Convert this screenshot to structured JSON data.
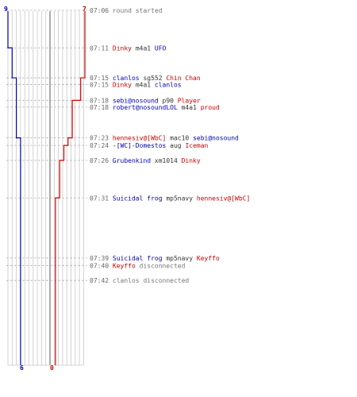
{
  "colors": {
    "blue": "#0000b4",
    "red": "#cc0000",
    "grid": "#c8c8c8",
    "center": "#888888",
    "dash": "#b4b4b4",
    "time": "#666666",
    "text": "#333333",
    "status": "#777777"
  },
  "scores": {
    "left_start": "9",
    "right_start": "7",
    "left_end": "6",
    "right_end": "0"
  },
  "blue_steps": [
    {
      "time": "07:06",
      "level": 9
    },
    {
      "time": "07:11",
      "level": 8
    },
    {
      "time": "07:15",
      "level": 7
    },
    {
      "time": "07:23",
      "level": 6
    }
  ],
  "red_steps": [
    {
      "time": "07:06",
      "level": 7
    },
    {
      "time": "07:15",
      "level": 6
    },
    {
      "time": "07:18",
      "level": 5
    },
    {
      "time": "07:18",
      "level": 4
    },
    {
      "time": "07:23",
      "level": 3
    },
    {
      "time": "07:24",
      "level": 2
    },
    {
      "time": "07:26",
      "level": 1
    },
    {
      "time": "07:31",
      "level": 0
    }
  ],
  "events": [
    {
      "time": "07:06",
      "parts": [
        {
          "t": "round started",
          "c": "status"
        }
      ]
    },
    {
      "time": "07:11",
      "parts": [
        {
          "t": "Dinky",
          "c": "red"
        },
        {
          "t": " m4a1 ",
          "c": "text"
        },
        {
          "t": "UFO",
          "c": "blue"
        }
      ]
    },
    {
      "time": "07:15",
      "parts": [
        {
          "t": "clanlos",
          "c": "blue"
        },
        {
          "t": " sg552 ",
          "c": "text"
        },
        {
          "t": "Chin Chan",
          "c": "red"
        }
      ]
    },
    {
      "time": "07:15",
      "parts": [
        {
          "t": "Dinky",
          "c": "red"
        },
        {
          "t": " m4a1 ",
          "c": "text"
        },
        {
          "t": "clanlos",
          "c": "blue"
        }
      ]
    },
    {
      "time": "07:18",
      "parts": [
        {
          "t": "sebi@nosound",
          "c": "blue"
        },
        {
          "t": " p90 ",
          "c": "text"
        },
        {
          "t": "Player",
          "c": "red"
        }
      ]
    },
    {
      "time": "07:18",
      "parts": [
        {
          "t": "robert@nosoundLOL",
          "c": "blue"
        },
        {
          "t": " m4a1 ",
          "c": "text"
        },
        {
          "t": "proud",
          "c": "red"
        }
      ]
    },
    {
      "time": "07:23",
      "parts": [
        {
          "t": "hennesiv@[WbC]",
          "c": "red"
        },
        {
          "t": " mac10 ",
          "c": "text"
        },
        {
          "t": "sebi@nosound",
          "c": "blue"
        }
      ]
    },
    {
      "time": "07:24",
      "parts": [
        {
          "t": "-[WC]-Domestos",
          "c": "blue"
        },
        {
          "t": " aug ",
          "c": "text"
        },
        {
          "t": "Iceman",
          "c": "red"
        }
      ]
    },
    {
      "time": "07:26",
      "parts": [
        {
          "t": "Grubenkind",
          "c": "blue"
        },
        {
          "t": " xm1014 ",
          "c": "text"
        },
        {
          "t": "Dinky",
          "c": "red"
        }
      ]
    },
    {
      "time": "07:31",
      "parts": [
        {
          "t": "Suicidal frog",
          "c": "blue"
        },
        {
          "t": " mp5navy ",
          "c": "text"
        },
        {
          "t": "hennesiv@[WbC]",
          "c": "red"
        }
      ]
    },
    {
      "time": "07:39",
      "parts": [
        {
          "t": "Suicidal frog",
          "c": "blue"
        },
        {
          "t": " mp5navy ",
          "c": "text"
        },
        {
          "t": "Keyffo",
          "c": "red"
        }
      ]
    },
    {
      "time": "07:40",
      "parts": [
        {
          "t": "Keyffo",
          "c": "red"
        },
        {
          "t": " disconnected",
          "c": "status"
        }
      ]
    },
    {
      "time": "07:42",
      "parts": [
        {
          "t": "clanlos disconnected",
          "c": "status"
        }
      ]
    }
  ]
}
